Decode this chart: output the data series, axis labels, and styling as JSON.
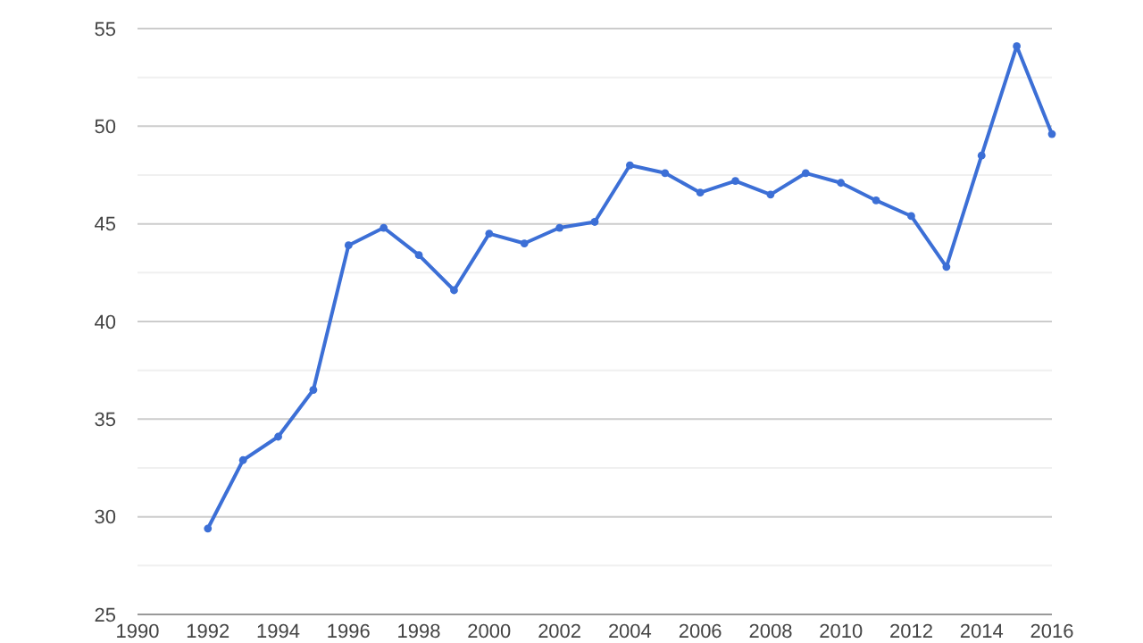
{
  "chart_data": {
    "type": "line",
    "x": [
      1992,
      1993,
      1994,
      1995,
      1996,
      1997,
      1998,
      1999,
      2000,
      2001,
      2002,
      2003,
      2004,
      2005,
      2006,
      2007,
      2008,
      2009,
      2010,
      2011,
      2012,
      2013,
      2014,
      2015,
      2016
    ],
    "series": [
      {
        "color": "#3c6fd6",
        "values": [
          29.4,
          32.9,
          34.1,
          36.5,
          43.9,
          44.8,
          43.4,
          41.6,
          44.5,
          44.0,
          44.8,
          45.1,
          48.0,
          47.6,
          46.6,
          47.2,
          46.5,
          47.6,
          47.1,
          46.2,
          45.4,
          42.8,
          48.5,
          54.1,
          49.6
        ]
      }
    ],
    "xlim": [
      1990,
      2016
    ],
    "xticks": [
      1990,
      1992,
      1994,
      1996,
      1998,
      2000,
      2002,
      2004,
      2006,
      2008,
      2010,
      2012,
      2014,
      2016
    ],
    "ylim": [
      25,
      55
    ],
    "yticks": [
      25,
      {
        "value": 27.5,
        "label": null
      },
      30,
      {
        "value": 32.5,
        "label": null
      },
      35,
      {
        "value": 37.5,
        "label": null
      },
      40,
      {
        "value": 42.5,
        "label": null
      },
      45,
      {
        "value": 47.5,
        "label": null
      },
      50,
      {
        "value": 52.5,
        "label": null
      },
      55
    ],
    "grid": "y",
    "marker": "circle",
    "line_style": "solid"
  }
}
